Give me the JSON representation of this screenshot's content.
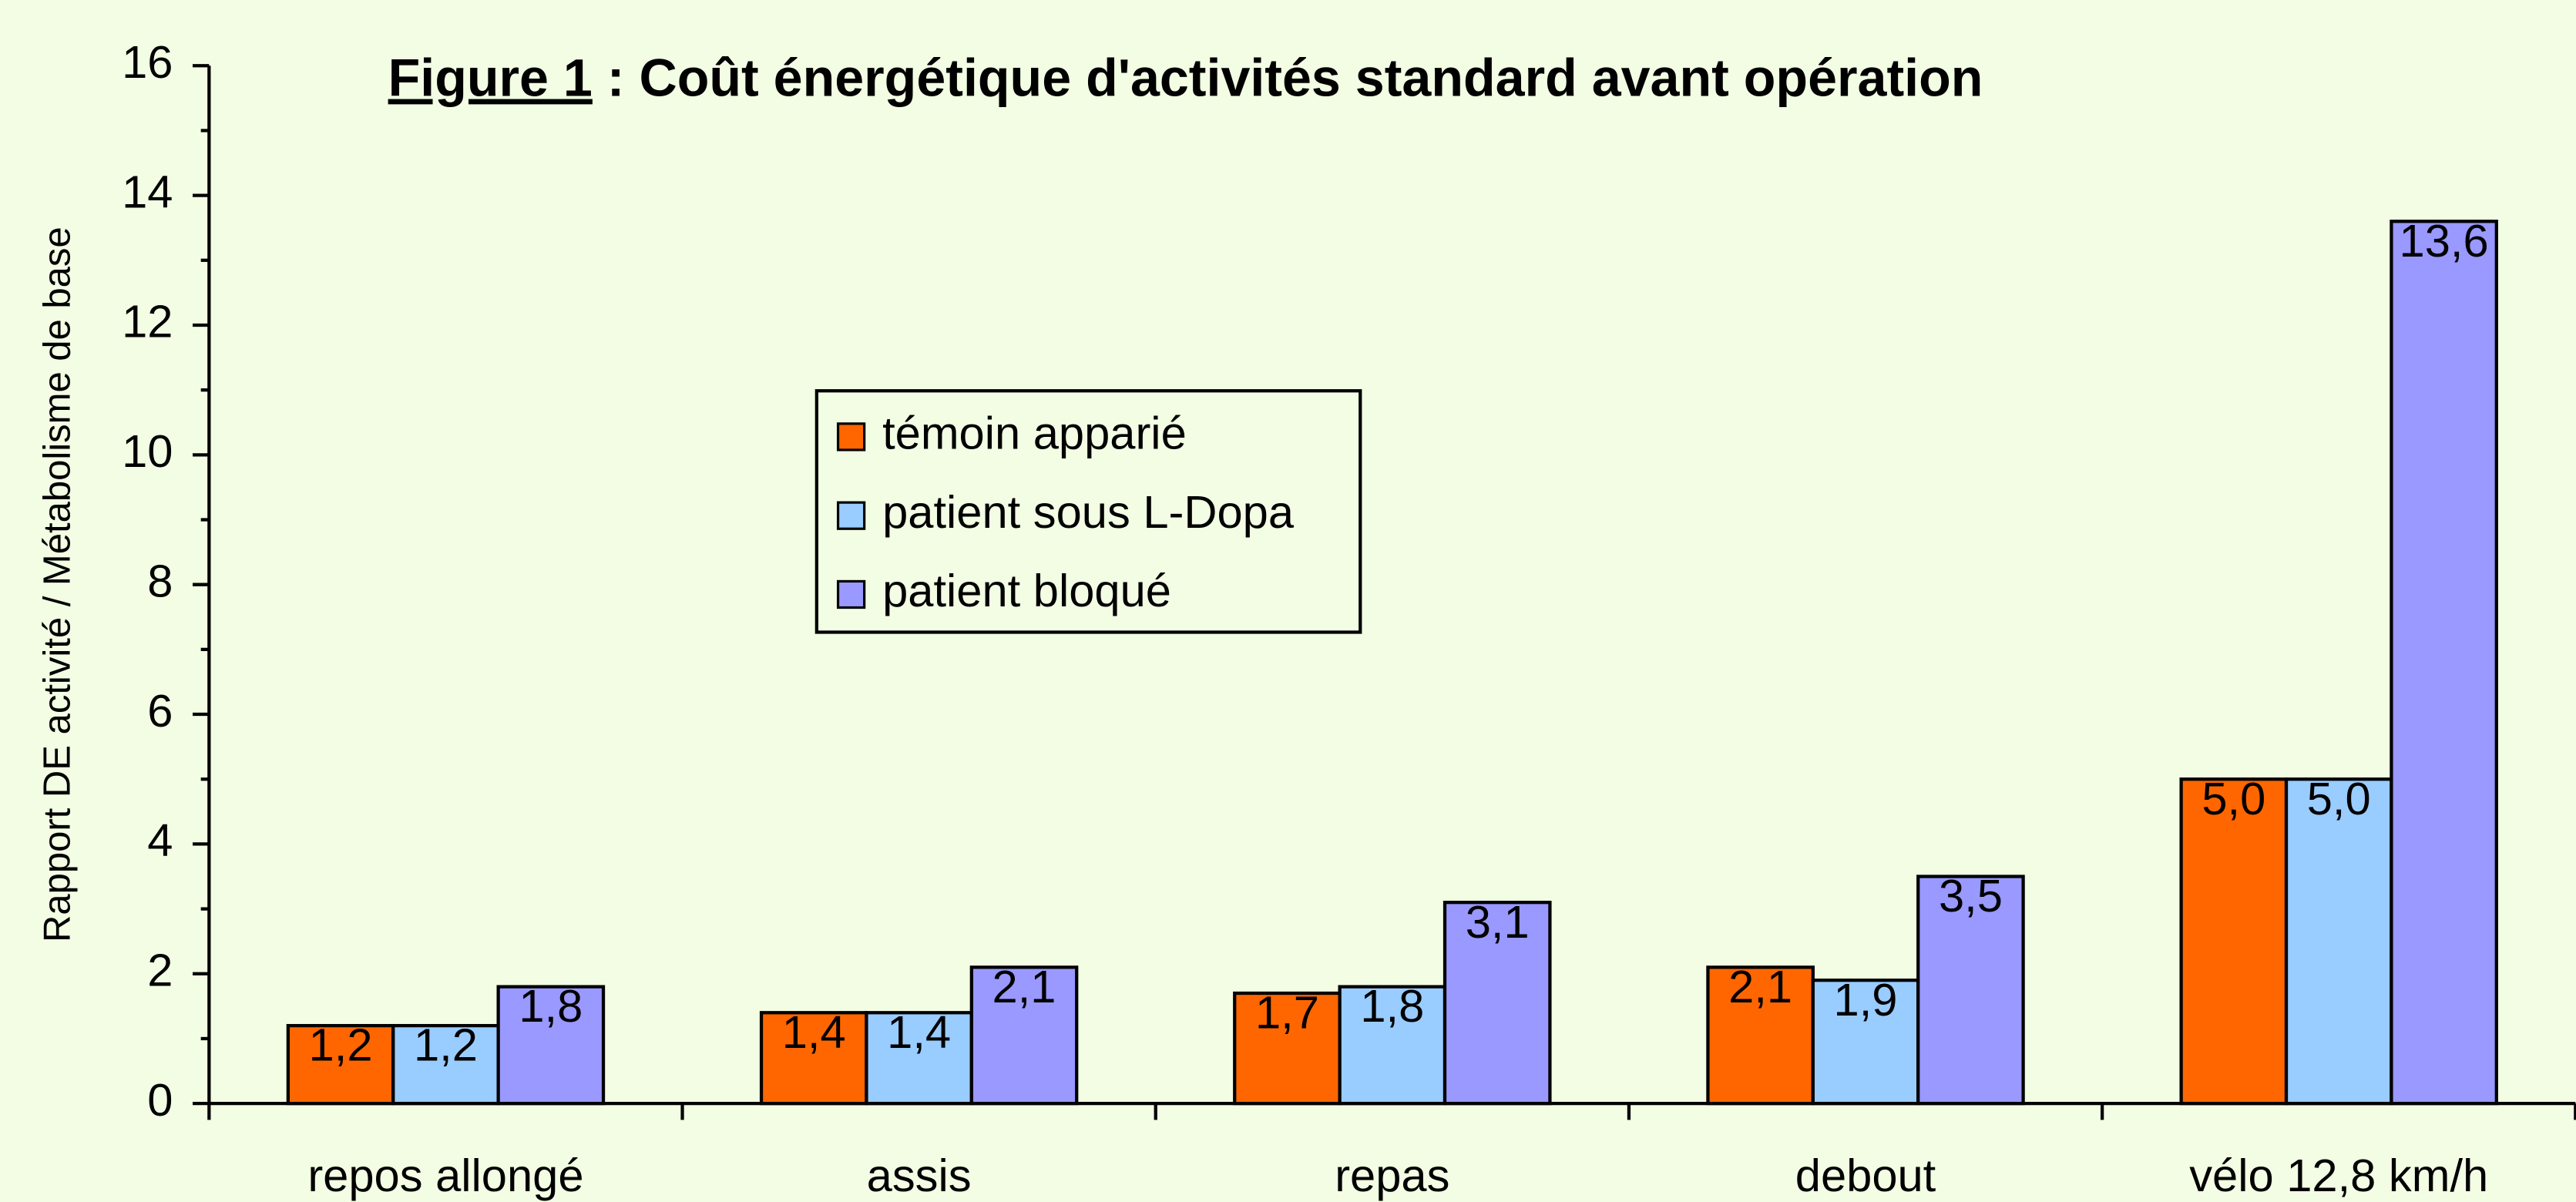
{
  "chart_data": {
    "type": "bar",
    "title": [
      "Figure 1",
      " : Coût énergétique d'activités standard avant opération"
    ],
    "y_label": "Rapport DE activité / Métabolisme de base",
    "categories": [
      "repos allongé",
      "assis",
      "repas",
      "debout",
      "vélo 12,8 km/h"
    ],
    "series": [
      {
        "name": "témoin apparié",
        "color": "#ff6600",
        "values": [
          1.2,
          1.4,
          1.7,
          2.1,
          5.0
        ],
        "value_labels": [
          "1,2",
          "1,4",
          "1,7",
          "2,1",
          "5,0"
        ]
      },
      {
        "name": "patient sous L-Dopa",
        "color": "#99ccff",
        "values": [
          1.2,
          1.4,
          1.8,
          1.9,
          5.0
        ],
        "value_labels": [
          "1,2",
          "1,4",
          "1,8",
          "1,9",
          "5,0"
        ]
      },
      {
        "name": "patient bloqué",
        "color": "#9999ff",
        "values": [
          1.8,
          2.1,
          3.1,
          3.5,
          13.6
        ],
        "value_labels": [
          "1,8",
          "2,1",
          "3,1",
          "3,5",
          "13,6"
        ]
      }
    ],
    "ylim": [
      0,
      16
    ],
    "yticks": [
      0,
      2,
      4,
      6,
      8,
      10,
      12,
      14,
      16
    ],
    "minor_yticks": [
      1,
      3,
      5,
      7,
      9,
      11,
      13,
      15
    ],
    "legend": "top-center"
  }
}
